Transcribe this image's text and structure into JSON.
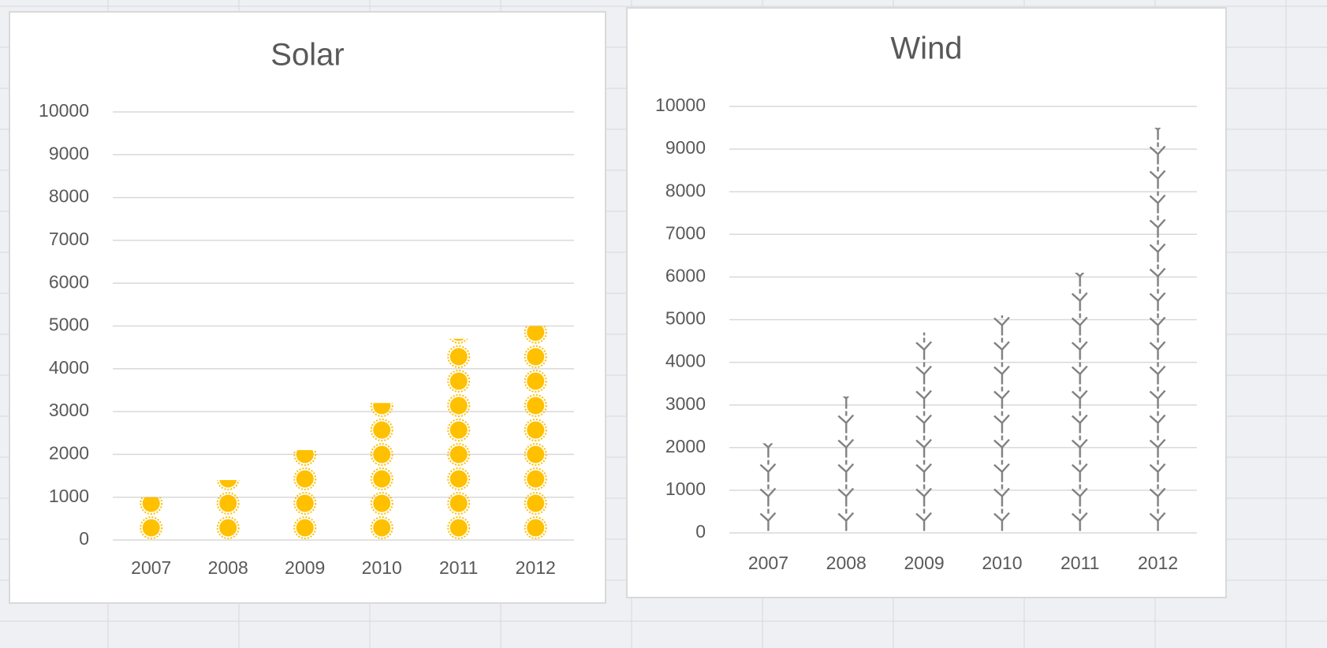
{
  "chart_data": [
    {
      "type": "bar",
      "title": "Solar",
      "icon": "sun",
      "color": "#ffc000",
      "categories": [
        "2007",
        "2008",
        "2009",
        "2010",
        "2011",
        "2012"
      ],
      "values": [
        1000,
        1400,
        2100,
        3200,
        4700,
        5000
      ],
      "ylim": [
        0,
        10000
      ],
      "yticks": [
        0,
        1000,
        2000,
        3000,
        4000,
        5000,
        6000,
        7000,
        8000,
        9000,
        10000
      ],
      "grid": true
    },
    {
      "type": "bar",
      "title": "Wind",
      "icon": "turbine",
      "color": "#a6a6a6",
      "categories": [
        "2007",
        "2008",
        "2009",
        "2010",
        "2011",
        "2012"
      ],
      "values": [
        2100,
        3200,
        4700,
        5100,
        6100,
        9500
      ],
      "ylim": [
        0,
        10000
      ],
      "yticks": [
        0,
        1000,
        2000,
        3000,
        4000,
        5000,
        6000,
        7000,
        8000,
        9000,
        10000
      ],
      "grid": true
    }
  ]
}
